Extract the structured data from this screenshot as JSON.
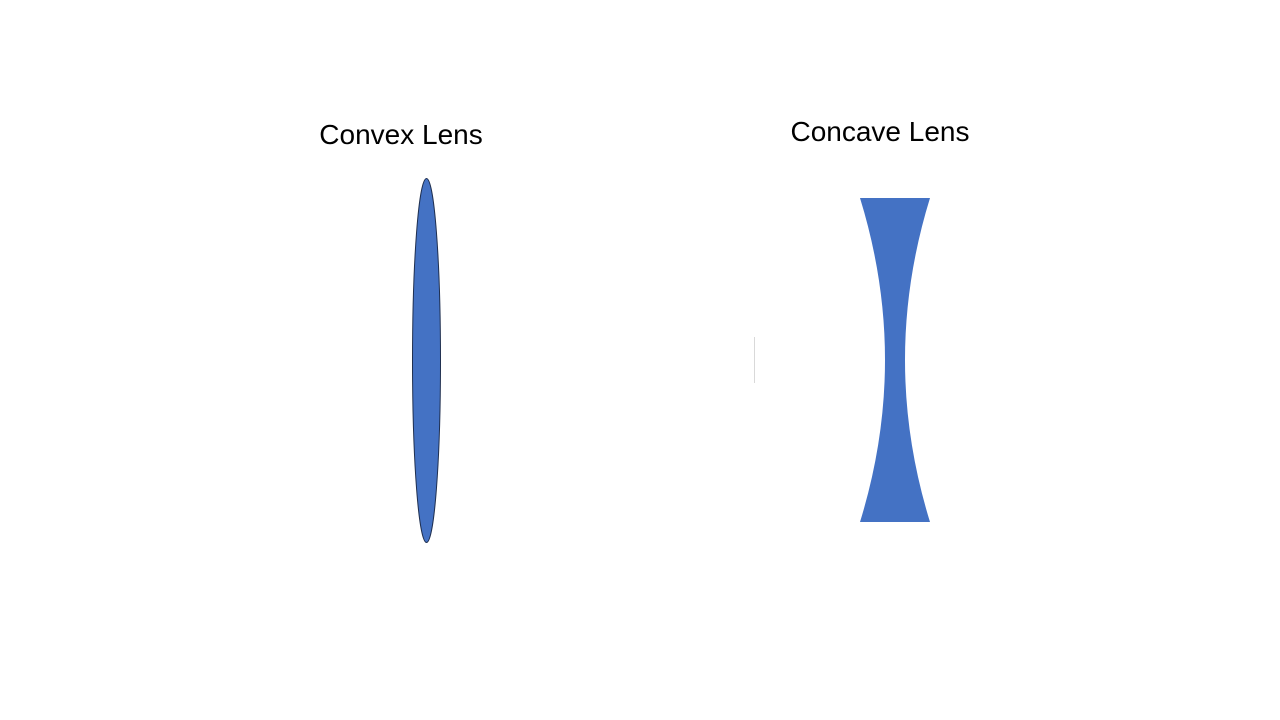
{
  "slide": {
    "convex": {
      "title": "Convex Lens"
    },
    "concave": {
      "title": "Concave Lens"
    }
  },
  "colors": {
    "lens_fill": "#4472C4",
    "lens_outline": "#1F2F4F",
    "divider": "#D9D9D9",
    "background": "#FFFFFF",
    "text": "#000000"
  }
}
